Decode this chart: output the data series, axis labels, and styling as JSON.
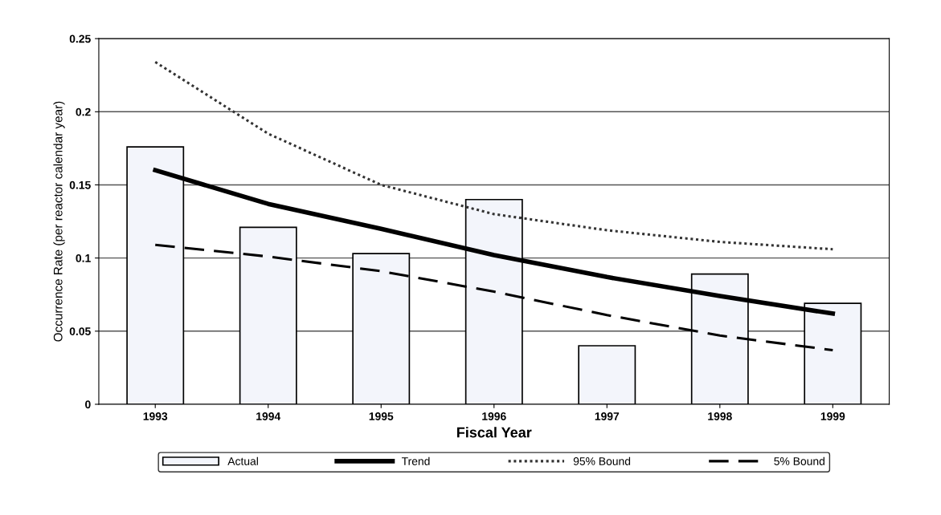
{
  "chart_data": {
    "type": "bar",
    "xlabel": "Fiscal Year",
    "ylabel": "Occurrence Rate (per reactor calendar year)",
    "categories": [
      "1993",
      "1994",
      "1995",
      "1996",
      "1997",
      "1998",
      "1999"
    ],
    "series": [
      {
        "name": "Actual",
        "color": "#f3f5fb",
        "values": [
          0.176,
          0.121,
          0.103,
          0.14,
          0.04,
          0.089,
          0.069
        ]
      },
      {
        "name": "Trend",
        "type": "line",
        "color": "#000000",
        "line_style": "solid",
        "values": [
          0.16,
          0.137,
          0.12,
          0.102,
          0.087,
          0.074,
          0.062
        ]
      },
      {
        "name": "95% Bound",
        "type": "line",
        "color": "#333333",
        "line_style": "dotted",
        "values": [
          0.234,
          0.185,
          0.15,
          0.13,
          0.119,
          0.111,
          0.106
        ]
      },
      {
        "name": "5% Bound",
        "type": "line",
        "color": "#000000",
        "line_style": "dashed",
        "values": [
          0.109,
          0.101,
          0.091,
          0.077,
          0.061,
          0.047,
          0.037
        ]
      }
    ],
    "ylim": [
      0,
      0.25
    ],
    "yticks": [
      0,
      0.05,
      0.1,
      0.15,
      0.2,
      0.25
    ],
    "grid": "y",
    "legend": "bottom"
  }
}
